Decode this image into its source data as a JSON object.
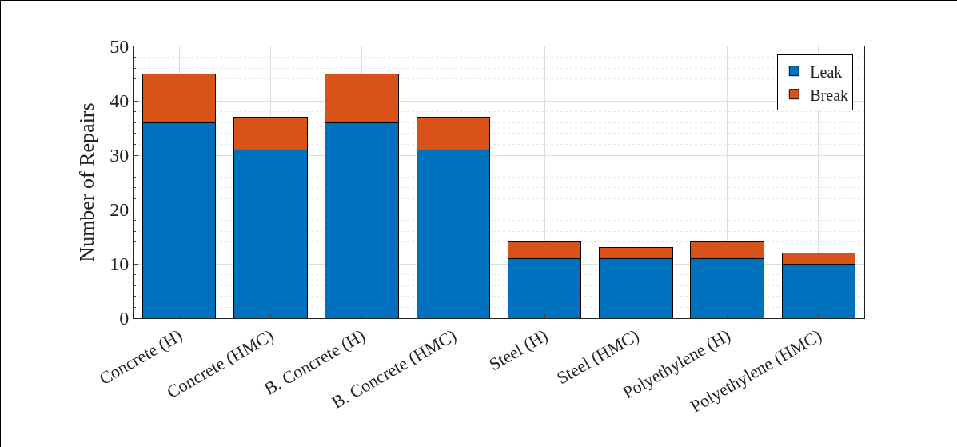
{
  "chart_data": {
    "type": "bar",
    "stacked": true,
    "ylabel": "Number of Repairs",
    "categories": [
      "Concrete (H)",
      "Concrete (HMC)",
      "B. Concrete (H)",
      "B. Concrete (HMC)",
      "Steel (H)",
      "Steel (HMC)",
      "Polyethylene (H)",
      "Polyethylene (HMC)"
    ],
    "series": [
      {
        "name": "Leak",
        "color": "#0072bd",
        "values": [
          36,
          31,
          36,
          31,
          11,
          11,
          11,
          10
        ]
      },
      {
        "name": "Break",
        "color": "#d95319",
        "values": [
          9,
          6,
          9,
          6,
          3,
          2,
          3,
          2
        ]
      }
    ],
    "ylim": [
      0,
      50
    ],
    "yticks": [
      0,
      10,
      20,
      30,
      40,
      50
    ],
    "grid": true,
    "legend": "top right"
  }
}
